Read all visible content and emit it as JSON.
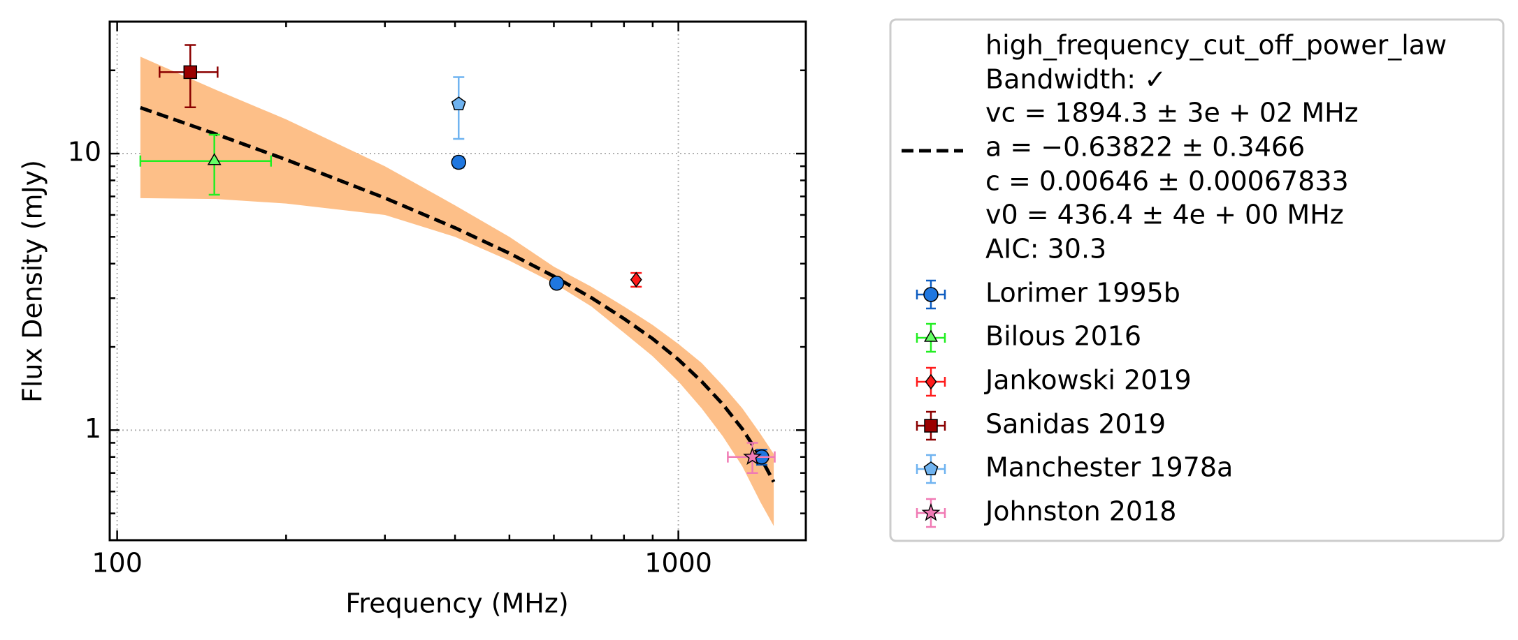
{
  "chart_data": {
    "type": "scatter",
    "xlabel": "Frequency (MHz)",
    "ylabel": "Flux Density (mJy)",
    "xscale": "log",
    "yscale": "log",
    "xlim": [
      97,
      1687
    ],
    "ylim": [
      0.4,
      30
    ],
    "xticks": [
      100,
      1000
    ],
    "yticks": [
      1,
      10
    ],
    "xminor": [
      200,
      300,
      400,
      500,
      600,
      700,
      800,
      900
    ],
    "yminor": [
      0.5,
      0.6,
      0.7,
      0.8,
      0.9,
      2,
      3,
      4,
      5,
      6,
      7,
      8,
      9,
      20
    ],
    "grid": true,
    "legend": "outside-right",
    "fit": {
      "label_lines": [
        "high_frequency_cut_off_power_law",
        "Bandwidth: ✓",
        "vc = 1894.3 ± 3e + 02 MHz",
        "a = −0.63822 ± 0.3466",
        "c = 0.00646 ± 0.00067833",
        "v0 = 436.4 ± 4e + 00 MHz",
        "AIC: 30.3"
      ],
      "color": "#000000",
      "band_color": "#fdbf88",
      "x": [
        110,
        150,
        200,
        300,
        400,
        500,
        600,
        700,
        800,
        900,
        1000,
        1100,
        1200,
        1300,
        1400,
        1479
      ],
      "values": [
        14.66,
        11.76,
        9.51,
        6.91,
        5.39,
        4.36,
        3.6,
        3.01,
        2.53,
        2.14,
        1.8,
        1.5,
        1.24,
        1.01,
        0.8,
        0.65
      ],
      "band_upper": [
        22.4,
        17.0,
        13.3,
        9.0,
        6.5,
        5.0,
        3.9,
        3.3,
        2.8,
        2.4,
        2.05,
        1.75,
        1.45,
        1.2,
        0.97,
        0.82
      ],
      "band_lower": [
        6.9,
        6.85,
        6.6,
        6.0,
        5.0,
        4.1,
        3.4,
        2.8,
        2.25,
        1.85,
        1.5,
        1.2,
        0.95,
        0.74,
        0.55,
        0.45
      ]
    },
    "series": [
      {
        "name": "Lorimer 1995b",
        "color": "#1f77e0",
        "err_color": "#0d5cc0",
        "marker": "circle",
        "x": [
          406,
          607,
          1408
        ],
        "values": [
          9.3,
          3.4,
          0.8
        ],
        "yerr": [
          0.4,
          0.1,
          0.05
        ]
      },
      {
        "name": "Bilous 2016",
        "color": "#66ff66",
        "err_color": "#22ee22",
        "marker": "triangle",
        "x": [
          149
        ],
        "values": [
          9.4
        ],
        "yerr": [
          2.3
        ],
        "xerr": [
          39
        ]
      },
      {
        "name": "Jankowski 2019",
        "color": "#ff1a1a",
        "err_color": "#ff1a1a",
        "marker": "diamond",
        "x": [
          841
        ],
        "values": [
          3.5
        ],
        "yerr": [
          0.2
        ]
      },
      {
        "name": "Sanidas 2019",
        "color": "#9b0000",
        "err_color": "#8b0000",
        "marker": "square",
        "x": [
          135
        ],
        "values": [
          19.7
        ],
        "yerr": [
          5
        ],
        "xerr": [
          16
        ]
      },
      {
        "name": "Manchester 1978a",
        "color": "#6fb3f0",
        "err_color": "#6fb3f0",
        "marker": "pentagon",
        "x": [
          406
        ],
        "values": [
          15.1
        ],
        "yerr": [
          3.8
        ]
      },
      {
        "name": "Johnston 2018",
        "color": "#f07ab4",
        "err_color": "#f07ab4",
        "marker": "star",
        "x": [
          1355
        ],
        "values": [
          0.8
        ],
        "yerr": [
          0.1
        ],
        "xerr": [
          130
        ]
      }
    ]
  }
}
